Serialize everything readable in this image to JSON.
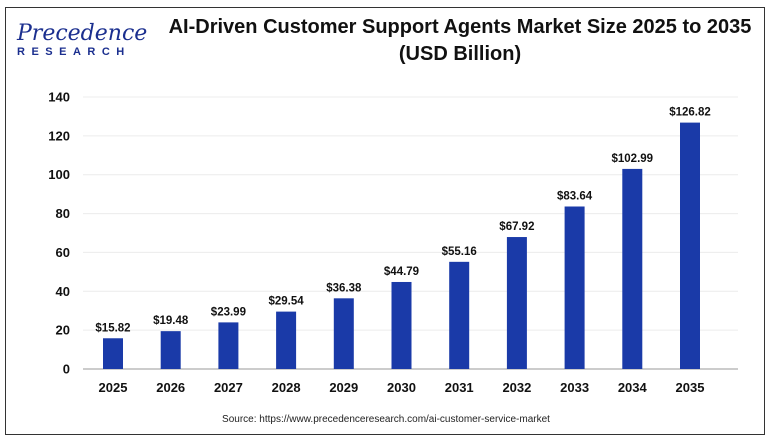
{
  "logo": {
    "line1": "Precedence",
    "line2": "RESEARCH"
  },
  "chart_data": {
    "type": "bar",
    "title": "AI-Driven Customer Support Agents Market Size 2025 to 2035",
    "subtitle": "(USD Billion)",
    "categories": [
      "2025",
      "2026",
      "2027",
      "2028",
      "2029",
      "2030",
      "2031",
      "2032",
      "2033",
      "2034",
      "2035"
    ],
    "values": [
      15.82,
      19.48,
      23.99,
      29.54,
      36.38,
      44.79,
      55.16,
      67.92,
      83.64,
      102.99,
      126.82
    ],
    "data_labels": [
      "$15.82",
      "$19.48",
      "$23.99",
      "$29.54",
      "$36.38",
      "$44.79",
      "$55.16",
      "$67.92",
      "$83.64",
      "$102.99",
      "$126.82"
    ],
    "ylim": [
      0,
      140
    ],
    "yticks": [
      0,
      20,
      40,
      60,
      80,
      100,
      120,
      140
    ],
    "grid": true,
    "xlabel": "",
    "ylabel": "",
    "bar_color": "#1a3aa8",
    "source": "Source: https://www.precedenceresearch.com/ai-customer-service-market"
  }
}
